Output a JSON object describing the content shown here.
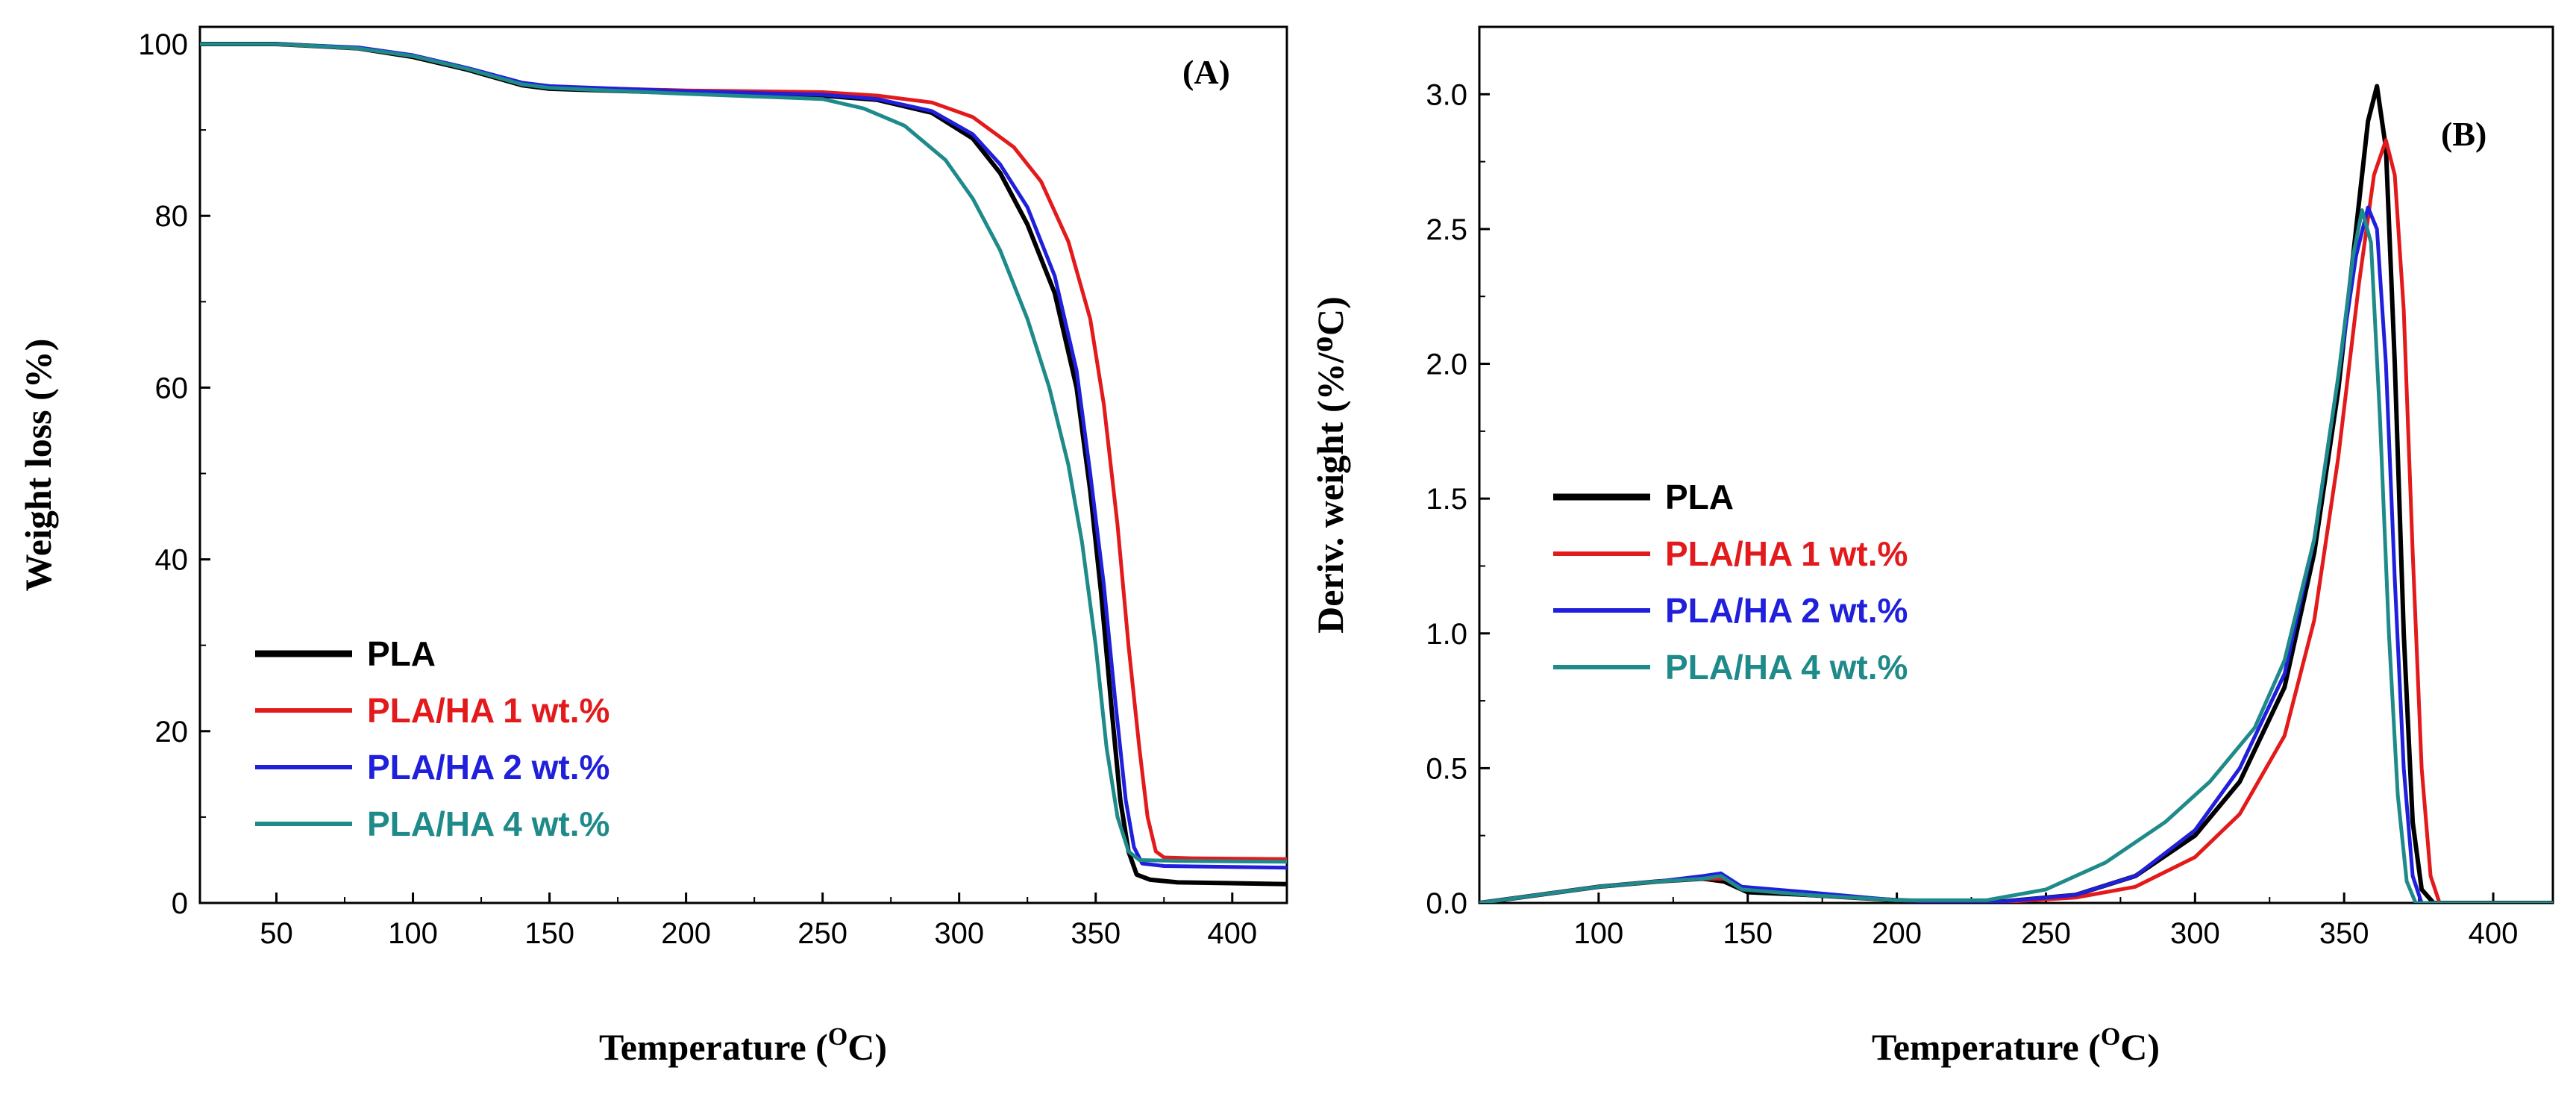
{
  "colors": {
    "PLA": "#000000",
    "PLA/HA 1 wt.%": "#e31a1c",
    "PLA/HA 2 wt.%": "#1f1fdc",
    "PLA/HA 4 wt.%": "#1f8a8a"
  },
  "chart_data": [
    {
      "id": "A",
      "type": "line",
      "panel_label": "(A)",
      "xlabel_main": "Temperature (",
      "xlabel_sup": "O",
      "xlabel_end": "C)",
      "ylabel": "Weight loss (%)",
      "xlim": [
        22,
        420
      ],
      "ylim": [
        0,
        102
      ],
      "xticks": [
        50,
        100,
        150,
        200,
        250,
        300,
        350,
        400
      ],
      "yticks": [
        0,
        20,
        40,
        60,
        80,
        100
      ],
      "legend_placement": "bottom-left",
      "series": [
        {
          "name": "PLA",
          "color": "#000000",
          "points": [
            [
              22,
              100
            ],
            [
              50,
              100
            ],
            [
              80,
              99.5
            ],
            [
              100,
              98.5
            ],
            [
              120,
              97
            ],
            [
              140,
              95.2
            ],
            [
              150,
              94.8
            ],
            [
              200,
              94.3
            ],
            [
              250,
              94
            ],
            [
              270,
              93.5
            ],
            [
              290,
              92
            ],
            [
              305,
              89
            ],
            [
              315,
              85
            ],
            [
              325,
              79
            ],
            [
              335,
              71
            ],
            [
              343,
              60
            ],
            [
              348,
              48
            ],
            [
              352,
              36
            ],
            [
              356,
              22
            ],
            [
              359,
              12
            ],
            [
              362,
              6
            ],
            [
              365,
              3.3
            ],
            [
              370,
              2.7
            ],
            [
              380,
              2.4
            ],
            [
              420,
              2.2
            ]
          ]
        },
        {
          "name": "PLA/HA 1 wt.%",
          "color": "#e31a1c",
          "points": [
            [
              22,
              100
            ],
            [
              50,
              100
            ],
            [
              80,
              99.5
            ],
            [
              100,
              98.6
            ],
            [
              120,
              97.1
            ],
            [
              140,
              95.3
            ],
            [
              150,
              95
            ],
            [
              200,
              94.6
            ],
            [
              250,
              94.4
            ],
            [
              270,
              94
            ],
            [
              290,
              93.2
            ],
            [
              305,
              91.5
            ],
            [
              320,
              88
            ],
            [
              330,
              84
            ],
            [
              340,
              77
            ],
            [
              348,
              68
            ],
            [
              353,
              58
            ],
            [
              358,
              44
            ],
            [
              362,
              30
            ],
            [
              366,
              18
            ],
            [
              369,
              10
            ],
            [
              372,
              6
            ],
            [
              375,
              5.3
            ],
            [
              385,
              5.2
            ],
            [
              420,
              5.1
            ]
          ]
        },
        {
          "name": "PLA/HA 2 wt.%",
          "color": "#1f1fdc",
          "points": [
            [
              22,
              100
            ],
            [
              50,
              100
            ],
            [
              80,
              99.6
            ],
            [
              100,
              98.7
            ],
            [
              120,
              97.2
            ],
            [
              140,
              95.5
            ],
            [
              150,
              95.1
            ],
            [
              200,
              94.5
            ],
            [
              250,
              94.1
            ],
            [
              270,
              93.6
            ],
            [
              290,
              92.2
            ],
            [
              305,
              89.5
            ],
            [
              315,
              86
            ],
            [
              325,
              81
            ],
            [
              335,
              73
            ],
            [
              343,
              62
            ],
            [
              348,
              50
            ],
            [
              353,
              37
            ],
            [
              357,
              24
            ],
            [
              361,
              12
            ],
            [
              364,
              6.5
            ],
            [
              367,
              4.6
            ],
            [
              375,
              4.3
            ],
            [
              420,
              4.1
            ]
          ]
        },
        {
          "name": "PLA/HA 4 wt.%",
          "color": "#1f8a8a",
          "points": [
            [
              22,
              100
            ],
            [
              50,
              100
            ],
            [
              80,
              99.5
            ],
            [
              100,
              98.6
            ],
            [
              120,
              97.1
            ],
            [
              140,
              95.3
            ],
            [
              150,
              94.9
            ],
            [
              200,
              94.2
            ],
            [
              250,
              93.6
            ],
            [
              265,
              92.5
            ],
            [
              280,
              90.5
            ],
            [
              295,
              86.5
            ],
            [
              305,
              82
            ],
            [
              315,
              76
            ],
            [
              325,
              68
            ],
            [
              333,
              60
            ],
            [
              340,
              51
            ],
            [
              345,
              42
            ],
            [
              350,
              30
            ],
            [
              354,
              18
            ],
            [
              358,
              10
            ],
            [
              362,
              6
            ],
            [
              366,
              5
            ],
            [
              380,
              4.9
            ],
            [
              420,
              4.8
            ]
          ]
        }
      ]
    },
    {
      "id": "B",
      "type": "line",
      "panel_label": "(B)",
      "xlabel_main": "Temperature (",
      "xlabel_sup": "O",
      "xlabel_end": "C)",
      "ylabel": "Deriv. weight (%/ᴼC)",
      "xlim": [
        60,
        420
      ],
      "ylim": [
        0,
        3.25
      ],
      "xticks": [
        100,
        150,
        200,
        250,
        300,
        350,
        400
      ],
      "yticks": [
        0.0,
        0.5,
        1.0,
        1.5,
        2.0,
        2.5,
        3.0
      ],
      "ytick_labels": [
        "0.0",
        "0.5",
        "1.0",
        "1.5",
        "2.0",
        "2.5",
        "3.0"
      ],
      "legend_placement": "top-left",
      "series": [
        {
          "name": "PLA",
          "color": "#000000",
          "points": [
            [
              60,
              0
            ],
            [
              80,
              0.03
            ],
            [
              100,
              0.06
            ],
            [
              120,
              0.08
            ],
            [
              135,
              0.09
            ],
            [
              142,
              0.08
            ],
            [
              150,
              0.04
            ],
            [
              170,
              0.03
            ],
            [
              200,
              0.01
            ],
            [
              230,
              0
            ],
            [
              260,
              0.03
            ],
            [
              280,
              0.1
            ],
            [
              300,
              0.25
            ],
            [
              315,
              0.45
            ],
            [
              330,
              0.8
            ],
            [
              340,
              1.3
            ],
            [
              348,
              1.9
            ],
            [
              354,
              2.5
            ],
            [
              358,
              2.9
            ],
            [
              361,
              3.03
            ],
            [
              364,
              2.8
            ],
            [
              367,
              2.0
            ],
            [
              370,
              1.0
            ],
            [
              373,
              0.3
            ],
            [
              376,
              0.05
            ],
            [
              380,
              0
            ],
            [
              420,
              0
            ]
          ]
        },
        {
          "name": "PLA/HA 1 wt.%",
          "color": "#e31a1c",
          "points": [
            [
              60,
              0
            ],
            [
              80,
              0.03
            ],
            [
              100,
              0.06
            ],
            [
              120,
              0.08
            ],
            [
              135,
              0.09
            ],
            [
              142,
              0.09
            ],
            [
              150,
              0.05
            ],
            [
              170,
              0.03
            ],
            [
              200,
              0.01
            ],
            [
              230,
              0
            ],
            [
              260,
              0.02
            ],
            [
              280,
              0.06
            ],
            [
              300,
              0.17
            ],
            [
              315,
              0.33
            ],
            [
              330,
              0.62
            ],
            [
              340,
              1.05
            ],
            [
              348,
              1.65
            ],
            [
              355,
              2.3
            ],
            [
              360,
              2.7
            ],
            [
              364,
              2.83
            ],
            [
              367,
              2.7
            ],
            [
              370,
              2.2
            ],
            [
              373,
              1.3
            ],
            [
              376,
              0.5
            ],
            [
              379,
              0.1
            ],
            [
              382,
              0
            ],
            [
              420,
              0
            ]
          ]
        },
        {
          "name": "PLA/HA 2 wt.%",
          "color": "#1f1fdc",
          "points": [
            [
              60,
              0
            ],
            [
              80,
              0.03
            ],
            [
              100,
              0.06
            ],
            [
              120,
              0.08
            ],
            [
              135,
              0.1
            ],
            [
              141,
              0.11
            ],
            [
              148,
              0.06
            ],
            [
              170,
              0.04
            ],
            [
              200,
              0.01
            ],
            [
              230,
              0
            ],
            [
              260,
              0.03
            ],
            [
              280,
              0.1
            ],
            [
              300,
              0.27
            ],
            [
              315,
              0.5
            ],
            [
              330,
              0.85
            ],
            [
              340,
              1.35
            ],
            [
              348,
              1.95
            ],
            [
              354,
              2.4
            ],
            [
              358,
              2.58
            ],
            [
              361,
              2.5
            ],
            [
              364,
              2.0
            ],
            [
              367,
              1.2
            ],
            [
              370,
              0.5
            ],
            [
              373,
              0.1
            ],
            [
              376,
              0
            ],
            [
              420,
              0
            ]
          ]
        },
        {
          "name": "PLA/HA 4 wt.%",
          "color": "#1f8a8a",
          "points": [
            [
              60,
              0
            ],
            [
              80,
              0.03
            ],
            [
              100,
              0.06
            ],
            [
              120,
              0.08
            ],
            [
              135,
              0.09
            ],
            [
              141,
              0.1
            ],
            [
              148,
              0.05
            ],
            [
              170,
              0.03
            ],
            [
              200,
              0.01
            ],
            [
              230,
              0.01
            ],
            [
              250,
              0.05
            ],
            [
              270,
              0.15
            ],
            [
              290,
              0.3
            ],
            [
              305,
              0.45
            ],
            [
              320,
              0.65
            ],
            [
              330,
              0.9
            ],
            [
              340,
              1.35
            ],
            [
              348,
              1.95
            ],
            [
              353,
              2.4
            ],
            [
              356,
              2.57
            ],
            [
              359,
              2.45
            ],
            [
              362,
              1.8
            ],
            [
              365,
              1.0
            ],
            [
              368,
              0.4
            ],
            [
              371,
              0.08
            ],
            [
              374,
              0
            ],
            [
              420,
              0
            ]
          ]
        }
      ]
    }
  ]
}
